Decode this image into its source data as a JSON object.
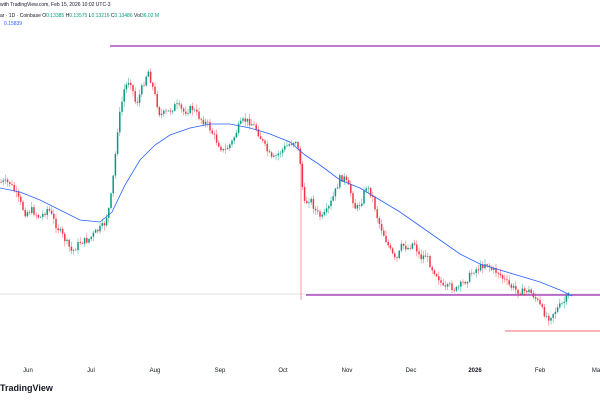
{
  "header": {
    "line1": "with TradingView.com, Feb 15, 2026 10:02 UTC-3",
    "symbol_prefix": "ar · 1D · Coinbase",
    "ohlc": [
      {
        "label": "O",
        "value": "0.13385"
      },
      {
        "label": "H",
        "value": "0.13575"
      },
      {
        "label": "L",
        "value": "0.13216"
      },
      {
        "label": "C",
        "value": "0.13486"
      },
      {
        "label": "Vol",
        "value": "36.02 M"
      }
    ],
    "indicator_value": "0.15839"
  },
  "watermark": "TradingView",
  "colors": {
    "up": "#089981",
    "down": "#f23645",
    "ma": "#2962ff",
    "level": "#9c27b0",
    "support": "#f23645"
  },
  "chart_data": {
    "type": "candlestick",
    "x_tick_labels": [
      "Jun",
      "Jul",
      "Aug",
      "Sep",
      "Oct",
      "Nov",
      "Dec",
      "2026",
      "Feb",
      "Ma"
    ],
    "y_axis": "price (hidden)",
    "overlay": "moving average",
    "horizontal_levels": [
      "resistance near Jul-Aug high",
      "support near Oct wick / Jan lows",
      "low near Feb"
    ],
    "trend_path": [
      [
        0,
        182
      ],
      [
        10,
        183
      ],
      [
        18,
        198
      ],
      [
        25,
        213
      ],
      [
        32,
        210
      ],
      [
        40,
        218
      ],
      [
        48,
        208
      ],
      [
        56,
        225
      ],
      [
        64,
        238
      ],
      [
        72,
        252
      ],
      [
        80,
        242
      ],
      [
        88,
        240
      ],
      [
        96,
        232
      ],
      [
        104,
        225
      ],
      [
        110,
        205
      ],
      [
        114,
        170
      ],
      [
        118,
        125
      ],
      [
        124,
        90
      ],
      [
        130,
        78
      ],
      [
        136,
        105
      ],
      [
        142,
        88
      ],
      [
        148,
        70
      ],
      [
        154,
        92
      ],
      [
        160,
        115
      ],
      [
        168,
        112
      ],
      [
        176,
        105
      ],
      [
        184,
        112
      ],
      [
        192,
        108
      ],
      [
        200,
        118
      ],
      [
        208,
        125
      ],
      [
        216,
        140
      ],
      [
        224,
        152
      ],
      [
        232,
        142
      ],
      [
        238,
        128
      ],
      [
        244,
        120
      ],
      [
        250,
        122
      ],
      [
        256,
        128
      ],
      [
        264,
        145
      ],
      [
        272,
        160
      ],
      [
        280,
        152
      ],
      [
        288,
        145
      ],
      [
        296,
        140
      ],
      [
        300,
        160
      ],
      [
        304,
        205
      ],
      [
        310,
        198
      ],
      [
        316,
        212
      ],
      [
        322,
        218
      ],
      [
        328,
        210
      ],
      [
        334,
        195
      ],
      [
        340,
        178
      ],
      [
        344,
        178
      ],
      [
        350,
        190
      ],
      [
        356,
        210
      ],
      [
        362,
        200
      ],
      [
        366,
        186
      ],
      [
        372,
        195
      ],
      [
        378,
        220
      ],
      [
        384,
        235
      ],
      [
        390,
        250
      ],
      [
        396,
        262
      ],
      [
        402,
        245
      ],
      [
        408,
        248
      ],
      [
        414,
        242
      ],
      [
        420,
        258
      ],
      [
        426,
        255
      ],
      [
        432,
        268
      ],
      [
        438,
        276
      ],
      [
        444,
        290
      ],
      [
        450,
        286
      ],
      [
        456,
        290
      ],
      [
        462,
        284
      ],
      [
        468,
        278
      ],
      [
        474,
        270
      ],
      [
        480,
        268
      ],
      [
        486,
        262
      ],
      [
        492,
        270
      ],
      [
        498,
        272
      ],
      [
        504,
        280
      ],
      [
        510,
        286
      ],
      [
        516,
        290
      ],
      [
        522,
        292
      ],
      [
        528,
        290
      ],
      [
        534,
        296
      ],
      [
        538,
        302
      ],
      [
        542,
        310
      ],
      [
        548,
        318
      ],
      [
        554,
        312
      ],
      [
        560,
        306
      ],
      [
        566,
        300
      ],
      [
        570,
        292
      ]
    ]
  }
}
